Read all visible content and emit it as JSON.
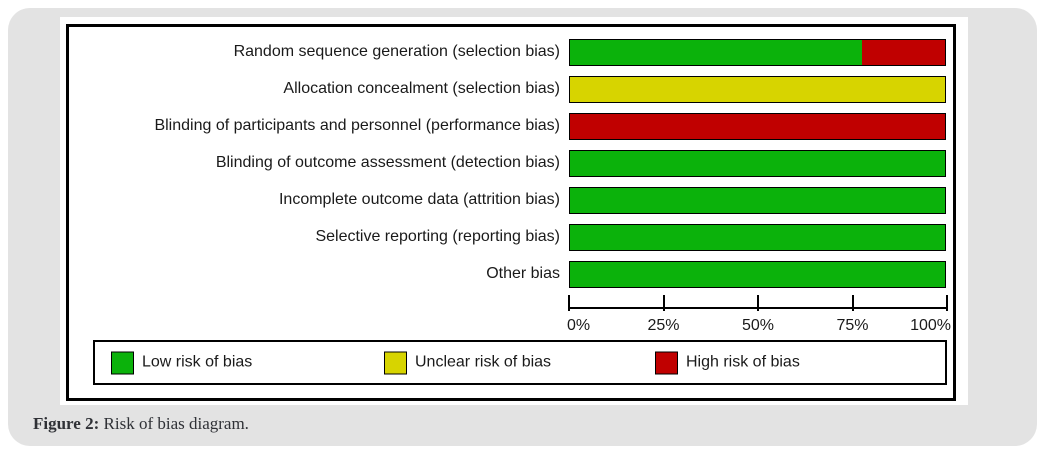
{
  "caption": {
    "label": "Figure 2:",
    "text": " Risk of bias diagram."
  },
  "palette": {
    "low_risk": "#0bb20b",
    "unclear_risk": "#d7d400",
    "high_risk": "#c00000",
    "card_background": "#e3e3e3"
  },
  "chart_data": {
    "type": "bar",
    "orientation": "horizontal",
    "stacked": true,
    "title": "",
    "xlabel": "",
    "ylabel": "",
    "xlim": [
      0,
      100
    ],
    "grid": false,
    "legend_position": "bottom-box",
    "categories": [
      "Random sequence generation (selection bias)",
      "Allocation concealment (selection bias)",
      "Blinding of participants and personnel (performance bias)",
      "Blinding of outcome assessment (detection bias)",
      "Incomplete outcome data (attrition bias)",
      "Selective reporting (reporting bias)",
      "Other bias"
    ],
    "series": [
      {
        "name": "Low risk of bias",
        "key": "low",
        "color": "#0bb20b",
        "values": [
          77.8,
          0,
          0,
          100,
          100,
          100,
          100
        ]
      },
      {
        "name": "Unclear risk of bias",
        "key": "unclear",
        "color": "#d7d400",
        "values": [
          0,
          100,
          0,
          0,
          0,
          0,
          0
        ]
      },
      {
        "name": "High risk of bias",
        "key": "high",
        "color": "#c00000",
        "values": [
          22.2,
          0,
          100,
          0,
          0,
          0,
          0
        ]
      }
    ],
    "x_ticks": [
      {
        "label": "0%",
        "value": 0
      },
      {
        "label": "25%",
        "value": 25
      },
      {
        "label": "50%",
        "value": 50
      },
      {
        "label": "75%",
        "value": 75
      },
      {
        "label": "100%",
        "value": 100
      }
    ]
  }
}
